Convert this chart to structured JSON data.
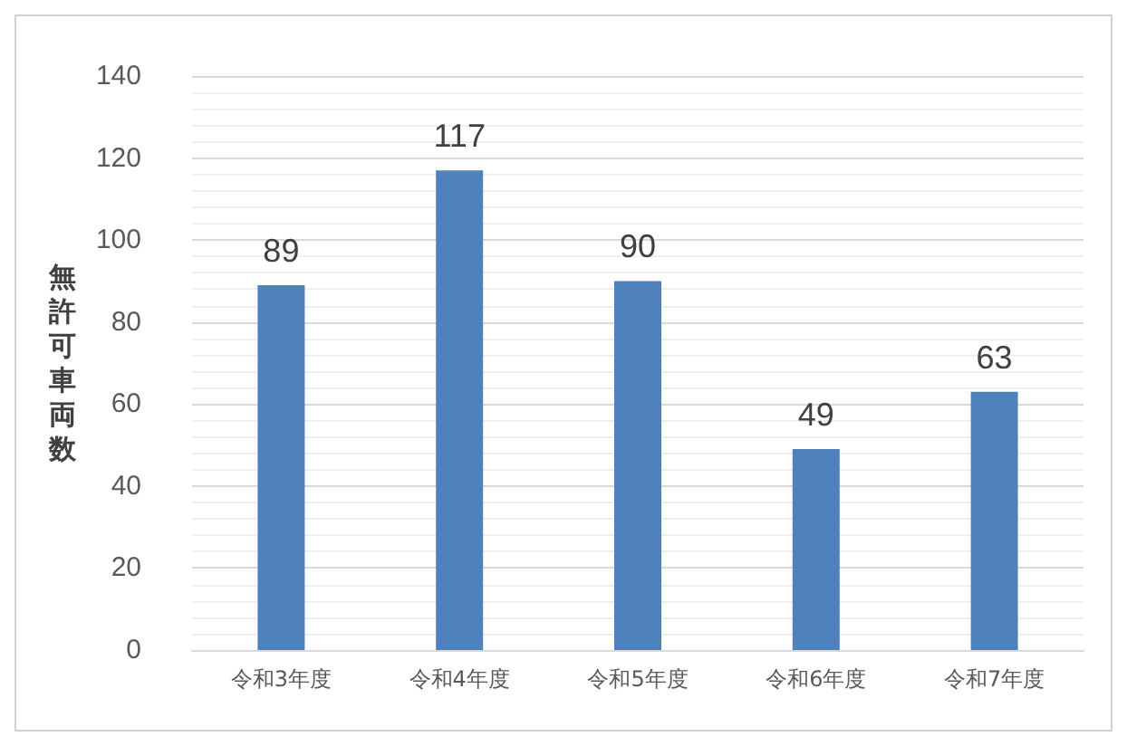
{
  "chart_data": {
    "type": "bar",
    "ylabel": "無許可車両数",
    "categories": [
      "令和3年度",
      "令和4年度",
      "令和5年度",
      "令和6年度",
      "令和7年度"
    ],
    "values": [
      89,
      117,
      90,
      49,
      63
    ],
    "color": "#4f81bd",
    "ylim": [
      0,
      140
    ],
    "yticks": [
      0,
      20,
      40,
      60,
      80,
      100,
      120,
      140
    ],
    "grid": "y",
    "data_labels": true
  }
}
